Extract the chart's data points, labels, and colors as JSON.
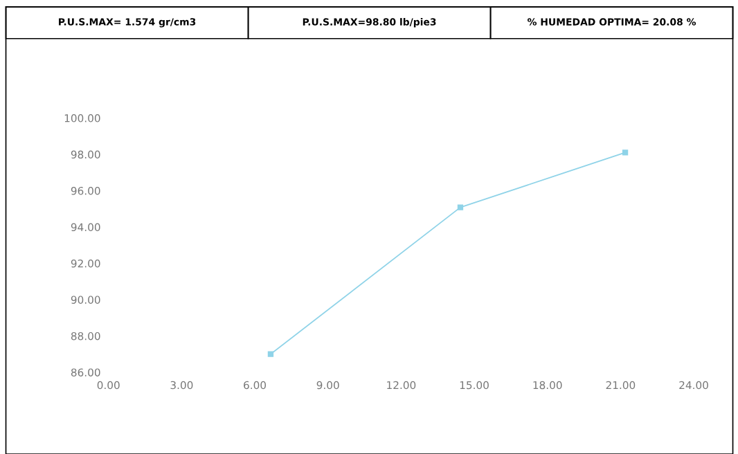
{
  "chart_data": {
    "type": "line",
    "annotations": [
      "P.U.S.MAX= 1.574 gr/cm3",
      "P.U.S.MAX=98.80 lb/pie3",
      "% HUMEDAD OPTIMA= 20.08 %"
    ],
    "series": [
      {
        "color": "#8fd3e8",
        "x": [
          6.65,
          14.43,
          21.19
        ],
        "values": [
          87.0,
          95.08,
          98.1
        ]
      }
    ],
    "xlim": [
      0,
      24
    ],
    "xticks": [
      {
        "value": 0,
        "label": "0.00"
      },
      {
        "value": 3,
        "label": "3.00"
      },
      {
        "value": 6,
        "label": "6.00"
      },
      {
        "value": 9,
        "label": "9.00"
      },
      {
        "value": 12,
        "label": "12.00"
      },
      {
        "value": 15,
        "label": "15.00"
      },
      {
        "value": 18,
        "label": "18.00"
      },
      {
        "value": 21,
        "label": "21.00"
      },
      {
        "value": 24,
        "label": "24.00"
      }
    ],
    "ylim": [
      86,
      100
    ],
    "yticks": [
      {
        "value": 86,
        "label": "86.00"
      },
      {
        "value": 88,
        "label": "88.00"
      },
      {
        "value": 90,
        "label": "90.00"
      },
      {
        "value": 92,
        "label": "92.00"
      },
      {
        "value": 94,
        "label": "94.00"
      },
      {
        "value": 96,
        "label": "96.00"
      },
      {
        "value": 98,
        "label": "98.00"
      },
      {
        "value": 100,
        "label": "100.00"
      }
    ],
    "marker": "square",
    "line_style": "solid",
    "grid": false,
    "legend": false
  }
}
